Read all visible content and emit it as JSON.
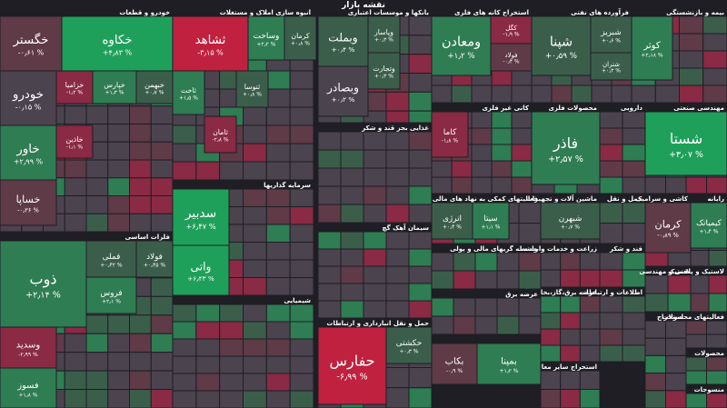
{
  "header": {
    "title": "نقشه بازار"
  },
  "colors": {
    "background": "#1e1e24",
    "strong_up": "#1fa05a",
    "up": "#2f7d53",
    "mild_up": "#3b5e4b",
    "neutral": "#4b434e",
    "mild_down": "#5f3a47",
    "down": "#8a2a44",
    "strong_down": "#c0213f"
  },
  "chart_data": {
    "type": "heatmap",
    "sectors": [
      "خودرو و قطعات",
      "انبوه سازی املاک و مستغلات",
      "بانکها و موسسات اعتباری",
      "استخراج کانه های فلزی",
      "فرآورده های نفتی",
      "بیمه و بازنشستگی",
      "فلزات اساسی",
      "سرمایه گذاریها",
      "غذایی بجز قند و شکر",
      "کانی غیر فلزی",
      "محصولات فلزی",
      "دارویی",
      "مهندسی صنعتی",
      "فعالیتهای کمکی به نهاد های مالی",
      "ماشین آلات و تجهیزات",
      "حمل و نقل",
      "کاشی و سرامیک",
      "رایانه",
      "سیمان آهک گچ",
      "شیمیایی",
      "واسطه گریهای مالی و پولی",
      "زراعت و خدمات وابسته",
      "قند و شکر",
      "فنی و مهندسی",
      "لاستیک و پلاستیک",
      "حمل و نقل انبارداری و ارتباطات",
      "عرضه برق،گاز،بخار و آب",
      "اطلاعات و ارتباطات",
      "عرضه برق",
      "استخراج سایر معادن",
      "استخراج",
      "فعالیتهای محصولات",
      "محصولات",
      "منسوجات"
    ],
    "tiles": [
      {
        "name": "خگستر",
        "change": "-۰٫۶۱ %"
      },
      {
        "name": "خکاوه",
        "change": "+۴٫۸۳ %"
      },
      {
        "name": "خودرو",
        "change": "-۰٫۱۵ %"
      },
      {
        "name": "خزامیا",
        "change": "-۱٫۲ %"
      },
      {
        "name": "خپارس",
        "change": "+۱٫۳ %"
      },
      {
        "name": "خبهمن",
        "change": "+۰٫۷ %"
      },
      {
        "name": "خاور",
        "change": "+۲٫۹۹ %"
      },
      {
        "name": "خاذین",
        "change": "-۱٫۱ %"
      },
      {
        "name": "خساپا",
        "change": "-۰٫۳۶ %"
      },
      {
        "name": "ثشاهد",
        "change": "-۳٫۱۵ %"
      },
      {
        "name": "وساخت",
        "change": "+۲٫۲ %"
      },
      {
        "name": "کرمان",
        "change": "+۰٫۸ %"
      },
      {
        "name": "ثاخت",
        "change": "+۱٫۵ %"
      },
      {
        "name": "ثامان",
        "change": "-۲٫۸ %"
      },
      {
        "name": "ثنوسا",
        "change": "+۰٫۸ %"
      },
      {
        "name": "وبملت",
        "change": "+۰٫۴ %"
      },
      {
        "name": "وپاسار",
        "change": "+۰٫۳ %"
      },
      {
        "name": "وبصادر",
        "change": "+۰٫۲ %"
      },
      {
        "name": "وتجارت",
        "change": "+۰٫۳ %"
      },
      {
        "name": "ومعادن",
        "change": "+۱٫۲ %"
      },
      {
        "name": "کگل",
        "change": "-۱٫۹ %"
      },
      {
        "name": "فولاد",
        "change": "-۰٫۴ %"
      },
      {
        "name": "شپنا",
        "change": "+۰٫۵۹ %"
      },
      {
        "name": "شبریز",
        "change": "+۰٫۶ %"
      },
      {
        "name": "شتران",
        "change": "+۰٫۳ %"
      },
      {
        "name": "کوثر",
        "change": "+۲٫۱۸ %"
      },
      {
        "name": "ذوب",
        "change": "+۲٫۱۴ %"
      },
      {
        "name": "فملی",
        "change": "+۰٫۴۲ %"
      },
      {
        "name": "فولاد",
        "change": "+۰٫۴۵ %"
      },
      {
        "name": "فروس",
        "change": "+۲٫۱ %"
      },
      {
        "name": "وسدید",
        "change": "-۲٫۹۹ %"
      },
      {
        "name": "فسوز",
        "change": "+۱٫۸ %"
      },
      {
        "name": "سدبیر",
        "change": "+۶٫۴۷ %"
      },
      {
        "name": "واتی",
        "change": "+۶٫۴۳ %"
      },
      {
        "name": "فاذر",
        "change": "+۲٫۵۷ %"
      },
      {
        "name": "شستا",
        "change": "+۳٫۰۷ %"
      },
      {
        "name": "کرمان",
        "change": "-۰٫۸۹ %"
      },
      {
        "name": "کیمیاتک",
        "change": "+۱٫۴ %"
      },
      {
        "name": "حفارس",
        "change": "-۶٫۹۹ %"
      },
      {
        "name": "بکاب",
        "change": "-۰٫۹ %"
      },
      {
        "name": "بمپنا",
        "change": "+۱٫۲ %"
      },
      {
        "name": "کاما",
        "change": "-۱٫۸ %"
      },
      {
        "name": "شبهرن",
        "change": "+۰٫۷ %"
      },
      {
        "name": "انرژی",
        "change": "+۰٫۴ %"
      },
      {
        "name": "سیتا",
        "change": "+۱٫۱ %"
      },
      {
        "name": "حکشتی",
        "change": "+۰٫۳ %"
      }
    ]
  }
}
